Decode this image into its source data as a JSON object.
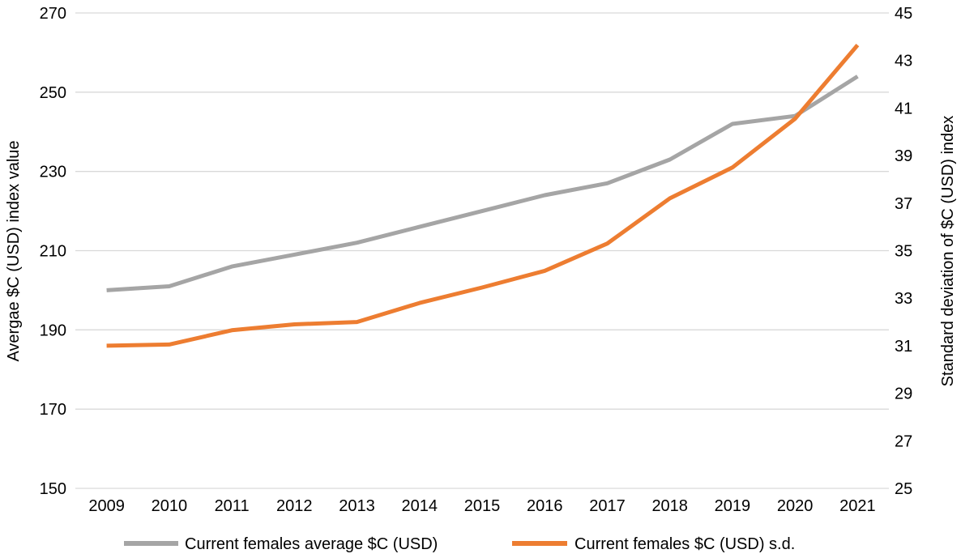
{
  "chart_data": {
    "type": "line",
    "categories": [
      "2009",
      "2010",
      "2011",
      "2012",
      "2013",
      "2014",
      "2015",
      "2016",
      "2017",
      "2018",
      "2019",
      "2020",
      "2021"
    ],
    "series": [
      {
        "name": "Current females average $C (USD)",
        "axis": "left",
        "color": "#a5a5a5",
        "values": [
          200,
          201,
          206,
          209,
          212,
          216,
          220,
          224,
          227,
          233,
          242,
          244,
          254
        ]
      },
      {
        "name": "Current females $C (USD) s.d.",
        "axis": "right",
        "color": "#ed7d31",
        "values": [
          31.0,
          31.05,
          31.65,
          31.9,
          32.0,
          32.8,
          33.45,
          34.15,
          35.3,
          37.2,
          38.5,
          40.55,
          43.65
        ]
      }
    ],
    "ylabel_left": "Avergae $C (USD) index value",
    "ylabel_right": "Standard deviation of $C (USD) index",
    "ylim_left": [
      150,
      270
    ],
    "yticks_left": [
      "150",
      "170",
      "190",
      "210",
      "230",
      "250",
      "270"
    ],
    "ylim_right": [
      25,
      45
    ],
    "yticks_right": [
      "25",
      "27",
      "29",
      "31",
      "33",
      "35",
      "37",
      "39",
      "41",
      "43",
      "45"
    ],
    "grid": true,
    "gridline_color": "#d9d9d9",
    "legend_position": "bottom"
  }
}
